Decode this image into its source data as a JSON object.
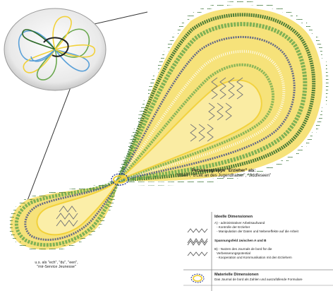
{
  "captions": {
    "educators": {
      "line1": "Personengruppe \"Erzieher\" als:",
      "line2": "\"d'Leit\", \"d'Leit an des Jugendhaiser\", \"Jiddfeseen\""
    },
    "youth": {
      "line1": "u.s. als \"ech\", \"du\", \"een\",",
      "line2": "\"mir-Service Jeunesse\""
    }
  },
  "legend": {
    "ideal": {
      "title": "Ideelle Dimensionen",
      "a_heading": "A) - administrativer Arbeitsaufwand",
      "a_items": [
        "- Kontrolle der Erzieher",
        "- Manipulation der Daten und Nebeneffekte auf die Arbeit"
      ],
      "tension": "Spannungsfeld zwischen A und B",
      "b_heading": "B) - Nutzen des Journals de bord für die",
      "b_items": [
        "Verbesserungspotential",
        "- Kooperation und Kommunikation mit den Erziehern"
      ]
    },
    "material": {
      "title": "Materielle Dimensionen",
      "text": "Das Journal de bord als Zahlen und auszufüllende Formulare"
    }
  },
  "colors": {
    "yellow": "#f2d13a",
    "green": "#6aa84f",
    "dark_green": "#2f6b2a",
    "blue": "#5aa0d8",
    "navy": "#2b3a8c",
    "grey_zigzag": "#7a7a7a"
  },
  "icons": [
    "inset-overview-figure",
    "zigzag-symbol",
    "double-zigzag-symbol",
    "knot-symbol"
  ]
}
